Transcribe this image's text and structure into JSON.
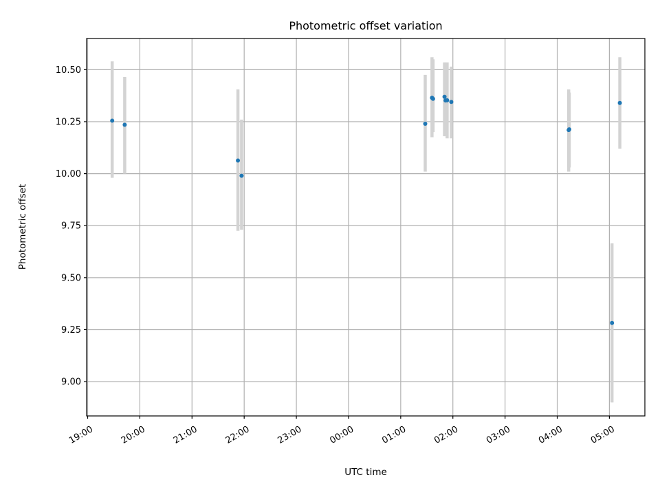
{
  "chart_data": {
    "type": "scatter",
    "title": "Photometric offset variation",
    "xlabel": "UTC time",
    "ylabel": "Photometric offset",
    "x_unit": "hours since 19:00 UTC",
    "xlim": [
      -0.02,
      10.68
    ],
    "ylim": [
      8.835,
      10.65
    ],
    "x_ticks": [
      {
        "pos": 0,
        "label": "19:00"
      },
      {
        "pos": 1,
        "label": "20:00"
      },
      {
        "pos": 2,
        "label": "21:00"
      },
      {
        "pos": 3,
        "label": "22:00"
      },
      {
        "pos": 4,
        "label": "23:00"
      },
      {
        "pos": 5,
        "label": "00:00"
      },
      {
        "pos": 6,
        "label": "01:00"
      },
      {
        "pos": 7,
        "label": "02:00"
      },
      {
        "pos": 8,
        "label": "03:00"
      },
      {
        "pos": 9,
        "label": "04:00"
      },
      {
        "pos": 10,
        "label": "05:00"
      }
    ],
    "y_ticks": [
      {
        "value": 9.0,
        "label": "9.00"
      },
      {
        "value": 9.25,
        "label": "9.25"
      },
      {
        "value": 9.5,
        "label": "9.50"
      },
      {
        "value": 9.75,
        "label": "9.75"
      },
      {
        "value": 10.0,
        "label": "10.00"
      },
      {
        "value": 10.25,
        "label": "10.25"
      },
      {
        "value": 10.5,
        "label": "10.50"
      }
    ],
    "grid": true,
    "colors": {
      "points": "#1f77b4",
      "errorbars": "#d3d3d3",
      "grid": "#b0b0b0"
    },
    "points": [
      {
        "t": 0.47,
        "y": 10.255,
        "lo": 9.98,
        "hi": 10.54
      },
      {
        "t": 0.71,
        "y": 10.235,
        "lo": 10.0,
        "hi": 10.465
      },
      {
        "t": 2.88,
        "y": 10.063,
        "lo": 9.725,
        "hi": 10.405
      },
      {
        "t": 2.95,
        "y": 9.99,
        "lo": 9.73,
        "hi": 10.26
      },
      {
        "t": 6.47,
        "y": 10.24,
        "lo": 10.01,
        "hi": 10.475
      },
      {
        "t": 6.6,
        "y": 10.365,
        "lo": 10.175,
        "hi": 10.56
      },
      {
        "t": 6.62,
        "y": 10.36,
        "lo": 10.2,
        "hi": 10.55
      },
      {
        "t": 6.84,
        "y": 10.37,
        "lo": 10.18,
        "hi": 10.535
      },
      {
        "t": 6.86,
        "y": 10.352,
        "lo": 10.19,
        "hi": 10.53
      },
      {
        "t": 6.89,
        "y": 10.353,
        "lo": 10.17,
        "hi": 10.535
      },
      {
        "t": 6.97,
        "y": 10.345,
        "lo": 10.17,
        "hi": 10.515
      },
      {
        "t": 9.22,
        "y": 10.21,
        "lo": 10.01,
        "hi": 10.405
      },
      {
        "t": 9.23,
        "y": 10.213,
        "lo": 10.03,
        "hi": 10.39
      },
      {
        "t": 10.05,
        "y": 9.282,
        "lo": 8.9,
        "hi": 9.665
      },
      {
        "t": 10.2,
        "y": 10.34,
        "lo": 10.12,
        "hi": 10.56
      }
    ]
  }
}
